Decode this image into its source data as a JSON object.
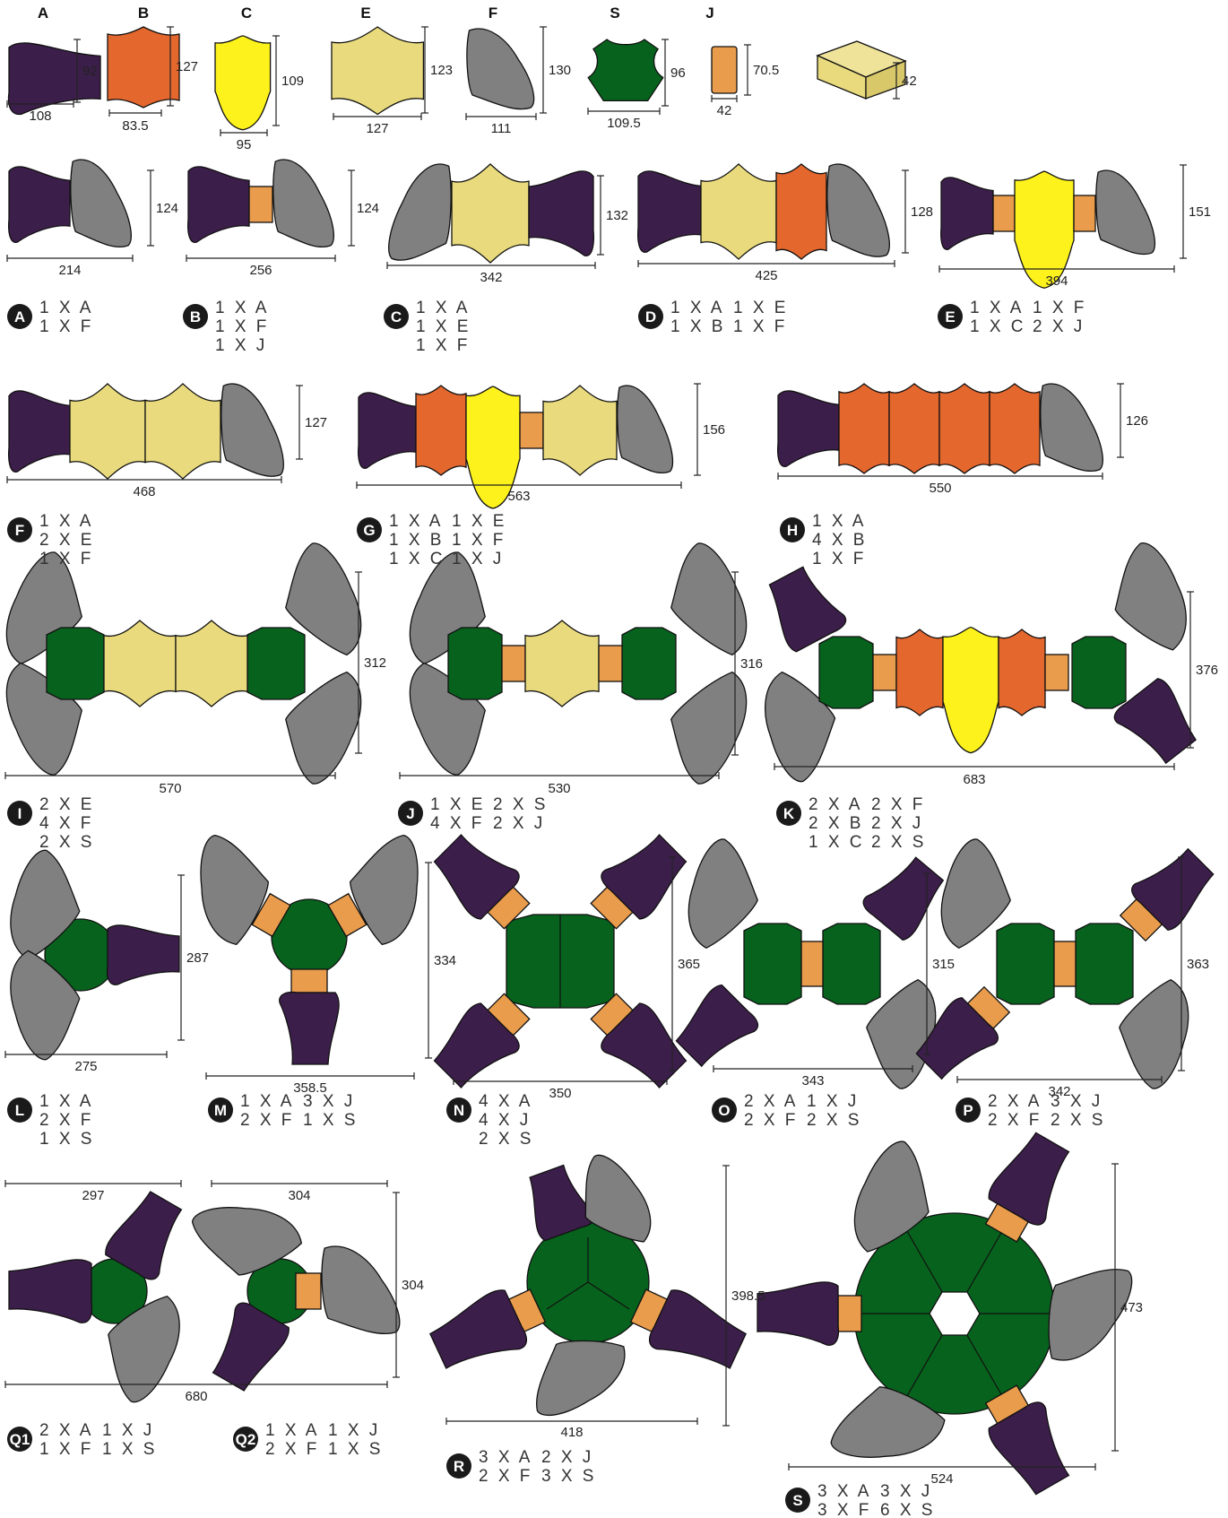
{
  "colors": {
    "A": "#3c1e4a",
    "B": "#e4672e",
    "C": "#fdf21b",
    "E": "#e9db7d",
    "F": "#808080",
    "S": "#07621d",
    "J": "#e99c4c",
    "box": "#e9db7d",
    "badge": "#1a1a1a"
  },
  "pieces": [
    {
      "letter": "A",
      "width": "108",
      "height": "92"
    },
    {
      "letter": "B",
      "width": "83.5",
      "height": "127"
    },
    {
      "letter": "C",
      "width": "95",
      "height": "109"
    },
    {
      "letter": "E",
      "width": "127",
      "height": "123"
    },
    {
      "letter": "F",
      "width": "111",
      "height": "130"
    },
    {
      "letter": "S",
      "width": "109.5",
      "height": "96"
    },
    {
      "letter": "J",
      "width": "42",
      "height": "70.5"
    }
  ],
  "box": {
    "depth": "42"
  },
  "assemblies": [
    {
      "id": "A",
      "width": "214",
      "height": "124",
      "ingredients": [
        [
          "1 X A"
        ],
        [
          "1 X F"
        ]
      ]
    },
    {
      "id": "B",
      "width": "256",
      "height": "124",
      "ingredients": [
        [
          "1 X A"
        ],
        [
          "1 X F"
        ],
        [
          "1 X J"
        ]
      ]
    },
    {
      "id": "C",
      "width": "342",
      "height": "132",
      "ingredients": [
        [
          "1 X A"
        ],
        [
          "1 X E"
        ],
        [
          "1 X F"
        ]
      ]
    },
    {
      "id": "D",
      "width": "425",
      "height": "128",
      "ingredients": [
        [
          "1 X A",
          "1 X E"
        ],
        [
          "1 X B",
          "1 X F"
        ]
      ]
    },
    {
      "id": "E",
      "width": "394",
      "height": "151",
      "ingredients": [
        [
          "1 X A",
          "1 X F"
        ],
        [
          "1 X C",
          "2 X J"
        ]
      ]
    },
    {
      "id": "F",
      "width": "468",
      "height": "127",
      "ingredients": [
        [
          "1 X A"
        ],
        [
          "2 X E"
        ],
        [
          "1 X F"
        ]
      ]
    },
    {
      "id": "G",
      "width": "563",
      "height": "156",
      "ingredients": [
        [
          "1 X A",
          "1 X E"
        ],
        [
          "1 X B",
          "1 X F"
        ],
        [
          "1 X C",
          "1 X J"
        ]
      ]
    },
    {
      "id": "H",
      "width": "550",
      "height": "126",
      "ingredients": [
        [
          "1 X A"
        ],
        [
          "4 X B"
        ],
        [
          "1 X F"
        ]
      ]
    },
    {
      "id": "I",
      "width": "570",
      "height": "312",
      "ingredients": [
        [
          "2 X E"
        ],
        [
          "4 X F"
        ],
        [
          "2 X S"
        ]
      ]
    },
    {
      "id": "J",
      "width": "530",
      "height": "316",
      "ingredients": [
        [
          "1 X E",
          "2 X S"
        ],
        [
          "4 X F",
          "2 X J"
        ]
      ]
    },
    {
      "id": "K",
      "width": "683",
      "height": "376",
      "ingredients": [
        [
          "2 X A",
          "2 X F"
        ],
        [
          "2 X B",
          "2 X J"
        ],
        [
          "1 X C",
          "2 X S"
        ]
      ]
    },
    {
      "id": "L",
      "width": "275",
      "height": "287",
      "ingredients": [
        [
          "1 X A"
        ],
        [
          "2 X F"
        ],
        [
          "1 X S"
        ]
      ]
    },
    {
      "id": "M",
      "width": "358.5",
      "height": "334",
      "ingredients": [
        [
          "1 X A",
          "3 X J"
        ],
        [
          "2 X F",
          "1 X S"
        ]
      ]
    },
    {
      "id": "N",
      "width": "350",
      "height": "365",
      "ingredients": [
        [
          "4 X A"
        ],
        [
          "4 X J"
        ],
        [
          "2 X S"
        ]
      ]
    },
    {
      "id": "O",
      "width": "343",
      "height": "315",
      "ingredients": [
        [
          "2 X A",
          "1 X J"
        ],
        [
          "2 X F",
          "2 X S"
        ]
      ]
    },
    {
      "id": "P",
      "width": "342",
      "height": "363",
      "ingredients": [
        [
          "2 X A",
          "3 X J"
        ],
        [
          "2 X F",
          "2 X S"
        ]
      ]
    },
    {
      "id": "Q1",
      "ingredients": [
        [
          "2 X A",
          "1 X J"
        ],
        [
          "1 X F",
          "1 X S"
        ]
      ]
    },
    {
      "id": "Q2",
      "ingredients": [
        [
          "1 X A",
          "1 X J"
        ],
        [
          "2 X F",
          "1 X S"
        ]
      ]
    },
    {
      "id": "R",
      "width": "418",
      "height": "398.5",
      "ingredients": [
        [
          "3 X A",
          "2 X J"
        ],
        [
          "2 X F",
          "3 X S"
        ]
      ]
    },
    {
      "id": "S",
      "width": "524",
      "height": "473",
      "ingredients": [
        [
          "3 X A",
          "3 X J"
        ],
        [
          "3 X F",
          "6 X S"
        ]
      ]
    }
  ],
  "q_dims": {
    "q1_width": "297",
    "q2_width": "304",
    "q2_height": "304",
    "combined_width": "680"
  }
}
